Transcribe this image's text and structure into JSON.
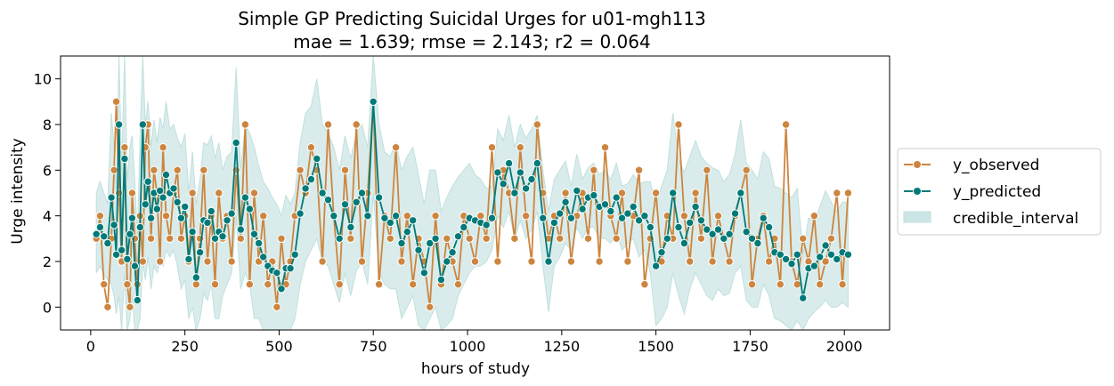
{
  "chart_data": {
    "type": "line",
    "title": "Simple GP Predicting Suicidal Urges for u01-mgh113",
    "subtitle": "mae = 1.639; rmse = 2.143; r2 = 0.064",
    "xlabel": "hours of study",
    "ylabel": "Urge intensity",
    "xlim": [
      -80,
      2120
    ],
    "ylim": [
      -1,
      11
    ],
    "x_ticks": [
      0,
      250,
      500,
      750,
      1000,
      1250,
      1500,
      1750,
      2000
    ],
    "y_ticks": [
      0,
      2,
      4,
      6,
      8,
      10
    ],
    "grid": false,
    "legend_position": "right, outside plot",
    "legend": [
      "y_observed",
      "y_predicted",
      "credible_interval"
    ],
    "colors": {
      "y_observed": "#cd853f",
      "y_predicted": "#007a78",
      "credible_interval": "#bfe0de",
      "marker_edge": "#ffffff"
    },
    "x": [
      15,
      25,
      35,
      45,
      55,
      62,
      68,
      75,
      82,
      90,
      97,
      104,
      110,
      117,
      124,
      131,
      138,
      145,
      152,
      160,
      168,
      176,
      184,
      192,
      200,
      210,
      220,
      230,
      240,
      250,
      260,
      270,
      280,
      290,
      300,
      310,
      320,
      330,
      340,
      350,
      362,
      374,
      386,
      398,
      410,
      422,
      434,
      446,
      458,
      470,
      482,
      494,
      506,
      518,
      530,
      542,
      556,
      570,
      585,
      600,
      615,
      630,
      645,
      660,
      675,
      690,
      705,
      720,
      735,
      750,
      765,
      780,
      795,
      810,
      825,
      840,
      855,
      870,
      885,
      900,
      915,
      930,
      945,
      960,
      975,
      990,
      1005,
      1020,
      1035,
      1050,
      1065,
      1080,
      1095,
      1110,
      1125,
      1140,
      1155,
      1170,
      1185,
      1200,
      1215,
      1230,
      1245,
      1260,
      1275,
      1290,
      1305,
      1320,
      1335,
      1350,
      1365,
      1380,
      1395,
      1410,
      1425,
      1440,
      1455,
      1470,
      1485,
      1500,
      1515,
      1530,
      1545,
      1560,
      1575,
      1590,
      1605,
      1620,
      1635,
      1650,
      1665,
      1680,
      1695,
      1710,
      1725,
      1740,
      1755,
      1770,
      1785,
      1800,
      1815,
      1830,
      1845,
      1860,
      1875,
      1890,
      1905,
      1920,
      1935,
      1950,
      1965,
      1980,
      1995,
      2010
    ],
    "series": [
      {
        "name": "y_observed",
        "values": [
          3,
          4,
          1,
          0,
          3,
          6,
          9,
          5,
          2,
          7,
          1,
          0,
          5,
          3,
          1,
          4,
          2,
          7,
          8,
          3,
          6,
          5,
          2,
          7,
          4,
          3,
          5,
          6,
          3,
          4,
          2,
          5,
          1,
          3,
          6,
          2,
          4,
          1,
          5,
          3,
          4,
          2,
          6,
          3,
          8,
          1,
          5,
          2,
          4,
          1,
          2,
          0,
          3,
          1,
          2,
          4,
          6,
          5,
          7,
          6,
          2,
          8,
          4,
          1,
          6,
          3,
          8,
          2,
          5,
          9,
          1,
          4,
          3,
          7,
          2,
          4,
          1,
          3,
          2,
          0,
          4,
          1,
          3,
          2,
          1,
          4,
          3,
          2,
          4,
          3,
          7,
          2,
          6,
          5,
          3,
          7,
          4,
          2,
          8,
          5,
          3,
          4,
          3,
          5,
          2,
          4,
          5,
          3,
          6,
          2,
          7,
          4,
          3,
          5,
          2,
          4,
          6,
          1,
          3,
          5,
          2,
          4,
          3,
          8,
          4,
          2,
          5,
          3,
          6,
          2,
          4,
          3,
          2,
          4,
          5,
          6,
          1,
          3,
          4,
          2,
          3,
          1,
          8,
          2,
          1,
          3,
          2,
          4,
          1,
          2,
          3,
          5,
          1,
          5
        ]
      },
      {
        "name": "y_predicted",
        "values": [
          3.2,
          3.5,
          3.1,
          2.8,
          4.8,
          3.6,
          2.3,
          8.0,
          2.5,
          6.5,
          2.1,
          3.2,
          3.9,
          1.8,
          0.3,
          3.5,
          8.0,
          4.5,
          5.5,
          3.9,
          5.0,
          4.3,
          5.1,
          4.8,
          5.8,
          5.0,
          5.2,
          4.6,
          3.9,
          4.4,
          2.1,
          3.3,
          1.3,
          2.4,
          3.8,
          3.7,
          4.2,
          3.0,
          3.3,
          3.1,
          3.8,
          4.1,
          7.2,
          3.4,
          4.8,
          4.3,
          3.2,
          2.8,
          2.2,
          1.8,
          1.6,
          1.5,
          0.8,
          1.7,
          1.7,
          2.3,
          4.1,
          5.2,
          5.6,
          6.5,
          5.0,
          4.7,
          4.0,
          3.0,
          4.5,
          3.5,
          4.6,
          5.0,
          4.0,
          9.0,
          4.8,
          3.9,
          3.7,
          4.0,
          2.8,
          3.3,
          3.8,
          2.5,
          1.5,
          2.8,
          3.0,
          1.2,
          2.0,
          2.4,
          3.1,
          3.5,
          3.9,
          3.8,
          3.7,
          3.6,
          3.9,
          5.9,
          5.4,
          6.3,
          5.0,
          5.9,
          5.2,
          5.6,
          6.3,
          3.9,
          2.0,
          3.7,
          4.1,
          4.6,
          3.9,
          5.1,
          4.3,
          4.8,
          4.9,
          4.4,
          4.5,
          4.2,
          4.8,
          3.9,
          4.1,
          4.4,
          3.8,
          4.0,
          3.5,
          1.8,
          2.4,
          3.0,
          5.0,
          3.5,
          2.8,
          3.7,
          4.4,
          3.8,
          3.4,
          3.2,
          3.4,
          3.0,
          3.2,
          4.1,
          5.0,
          3.3,
          3.0,
          2.8,
          3.9,
          3.5,
          2.4,
          2.3,
          2.1,
          1.9,
          2.3,
          0.4,
          1.7,
          1.8,
          2.2,
          2.7,
          2.3,
          2.1,
          2.4,
          2.3
        ]
      }
    ],
    "credible_interval": {
      "lower": [
        1.5,
        1.8,
        1.4,
        1.2,
        1.0,
        0.5,
        -0.3,
        0.5,
        -1.0,
        1.5,
        -1.0,
        -0.5,
        0.5,
        -1.0,
        -2.0,
        -0.5,
        2.0,
        1.2,
        2.2,
        0.8,
        1.8,
        1.5,
        2.0,
        1.8,
        2.5,
        2.2,
        2.5,
        1.8,
        0.8,
        1.2,
        -0.5,
        0.0,
        -1.5,
        -0.5,
        0.6,
        0.3,
        1.0,
        -0.5,
        -0.5,
        0.5,
        1.0,
        1.5,
        4.0,
        0.8,
        1.5,
        1.0,
        -0.5,
        -0.5,
        -1.0,
        -1.5,
        -1.6,
        -1.4,
        -2.5,
        -1.5,
        -1.0,
        -0.5,
        1.0,
        2.0,
        2.5,
        3.0,
        2.0,
        1.8,
        1.0,
        0.2,
        1.5,
        0.5,
        1.6,
        2.0,
        1.0,
        5.0,
        1.5,
        1.0,
        0.8,
        0.8,
        -0.5,
        0.0,
        0.5,
        -0.8,
        -1.5,
        -0.5,
        0.0,
        -1.8,
        -0.8,
        -0.5,
        0.5,
        1.0,
        1.5,
        1.8,
        1.8,
        2.0,
        2.5,
        4.0,
        3.5,
        4.2,
        3.0,
        3.8,
        3.0,
        3.4,
        4.2,
        1.8,
        -0.2,
        1.8,
        2.2,
        2.8,
        2.5,
        3.5,
        3.0,
        3.5,
        3.5,
        3.0,
        3.0,
        2.8,
        3.3,
        2.5,
        2.8,
        3.0,
        2.2,
        2.5,
        1.5,
        -0.8,
        -0.5,
        0.0,
        1.5,
        0.5,
        -0.3,
        0.8,
        1.5,
        1.0,
        0.5,
        0.3,
        0.8,
        0.5,
        0.6,
        1.5,
        1.8,
        0.3,
        0.0,
        0.0,
        1.0,
        0.5,
        -0.5,
        -0.6,
        -0.8,
        -1.0,
        -0.6,
        -1.5,
        -0.5,
        -0.2,
        0.0,
        0.3,
        0.0,
        0.0,
        0.2,
        0.0
      ],
      "upper": [
        5.0,
        5.5,
        5.0,
        4.5,
        8.5,
        7.0,
        5.0,
        11.0,
        6.0,
        11.0,
        5.5,
        7.0,
        7.5,
        5.5,
        3.0,
        7.5,
        11.0,
        8.0,
        9.0,
        7.0,
        8.2,
        7.2,
        8.3,
        7.8,
        9.0,
        7.8,
        8.0,
        7.4,
        7.0,
        7.6,
        5.0,
        6.8,
        4.5,
        5.6,
        7.2,
        7.1,
        7.5,
        6.5,
        7.2,
        6.0,
        6.6,
        6.8,
        10.5,
        6.0,
        8.0,
        7.6,
        7.0,
        6.2,
        5.5,
        5.2,
        4.8,
        4.5,
        4.0,
        4.9,
        4.5,
        5.0,
        7.2,
        8.5,
        8.8,
        10.0,
        8.0,
        7.6,
        7.0,
        6.0,
        7.5,
        6.5,
        7.6,
        8.0,
        7.0,
        11.0,
        8.0,
        6.8,
        6.6,
        7.2,
        6.0,
        6.6,
        7.0,
        5.8,
        4.5,
        6.0,
        6.0,
        4.2,
        4.8,
        5.3,
        5.7,
        6.0,
        6.3,
        5.8,
        5.6,
        5.2,
        5.3,
        7.8,
        7.3,
        8.4,
        7.0,
        8.0,
        7.4,
        7.8,
        8.4,
        6.0,
        4.2,
        5.6,
        6.0,
        6.4,
        5.3,
        6.7,
        5.6,
        6.1,
        6.3,
        5.8,
        6.0,
        5.6,
        6.3,
        5.3,
        5.4,
        5.8,
        5.4,
        5.5,
        5.5,
        4.4,
        5.3,
        6.0,
        8.5,
        6.5,
        5.9,
        6.6,
        7.3,
        6.6,
        6.3,
        6.1,
        6.0,
        5.5,
        5.8,
        6.7,
        8.2,
        6.3,
        6.0,
        5.6,
        6.8,
        6.5,
        5.3,
        5.2,
        5.0,
        4.8,
        5.2,
        2.3,
        3.9,
        3.8,
        4.4,
        5.1,
        4.6,
        4.2,
        4.6,
        4.6
      ]
    }
  }
}
